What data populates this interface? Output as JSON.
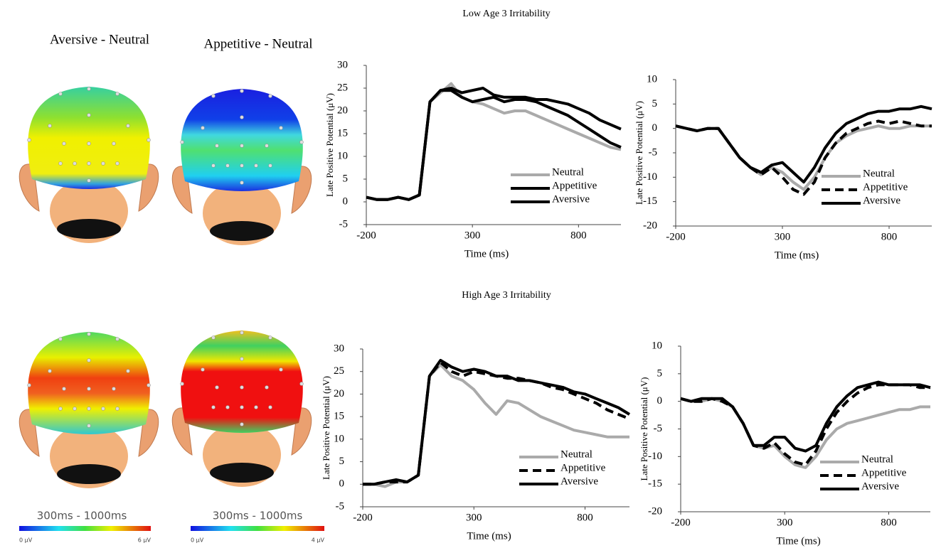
{
  "headings": {
    "low": "Low Age 3 Irritability",
    "high": "High Age 3 Irritability"
  },
  "scalp_maps": {
    "columns": [
      "Aversive - Neutral",
      "Appetitive - Neutral"
    ],
    "window_labels": [
      "300ms - 1000ms",
      "300ms - 1000ms"
    ],
    "scale_min_labels": [
      "0 μV",
      "0 μV"
    ],
    "scale_max_labels": [
      "6 μV",
      "4 μV"
    ]
  },
  "chart_data": [
    {
      "type": "line",
      "x_label": "Time (ms)",
      "y_label": "Late Positive Potential (μV)",
      "x": [
        -200,
        -150,
        -100,
        -50,
        0,
        50,
        100,
        150,
        200,
        250,
        300,
        350,
        400,
        450,
        500,
        550,
        600,
        650,
        700,
        750,
        800,
        850,
        900,
        950,
        1000
      ],
      "xlim": [
        -200,
        1000
      ],
      "xticks": [
        -200,
        300,
        800
      ],
      "ylim": [
        -5,
        30
      ],
      "yticks": [
        -5,
        0,
        5,
        10,
        15,
        20,
        25,
        30
      ],
      "series": [
        {
          "name": "Neutral",
          "color": "#aaaaaa",
          "dash": false,
          "values": [
            1,
            0.5,
            0.5,
            1,
            0.5,
            1.5,
            22,
            24,
            26,
            23,
            22,
            21.5,
            20.5,
            19.5,
            20,
            20,
            19,
            18,
            17,
            16,
            15,
            14,
            13,
            12,
            11.5
          ]
        },
        {
          "name": "Appetitive",
          "color": "#000000",
          "dash": false,
          "values": [
            1,
            0.5,
            0.5,
            1,
            0.5,
            1.5,
            22,
            24.5,
            25,
            24,
            24.5,
            25,
            23.5,
            23,
            23,
            23,
            22.5,
            22.5,
            22,
            21.5,
            20.5,
            19.5,
            18,
            17,
            16
          ]
        },
        {
          "name": "Aversive",
          "color": "#000000",
          "dash": false,
          "values": [
            1,
            0.5,
            0.5,
            1,
            0.5,
            1.5,
            22,
            24.5,
            24.5,
            23,
            22,
            22.5,
            23,
            22,
            22.5,
            22.5,
            22,
            21,
            20,
            19,
            17.5,
            16,
            14.5,
            13,
            12
          ]
        }
      ]
    },
    {
      "type": "line",
      "x_label": "Time (ms)",
      "y_label": "Late Positive Potential (μV)",
      "x": [
        -200,
        -150,
        -100,
        -50,
        0,
        50,
        100,
        150,
        200,
        250,
        300,
        350,
        400,
        450,
        500,
        550,
        600,
        650,
        700,
        750,
        800,
        850,
        900,
        950,
        1000
      ],
      "xlim": [
        -200,
        1000
      ],
      "xticks": [
        -200,
        300,
        800
      ],
      "ylim": [
        -20,
        10
      ],
      "yticks": [
        -20,
        -15,
        -10,
        -5,
        0,
        5,
        10
      ],
      "series": [
        {
          "name": "Neutral",
          "color": "#aaaaaa",
          "dash": false,
          "values": [
            0.5,
            0,
            -0.5,
            0,
            0,
            -3,
            -6,
            -8,
            -9.5,
            -8,
            -9,
            -11,
            -12.5,
            -10,
            -6,
            -3,
            -1.5,
            -0.5,
            0,
            0.5,
            0,
            0,
            0.5,
            0.5,
            0.5
          ]
        },
        {
          "name": "Appetitive",
          "color": "#000000",
          "dash": true,
          "values": [
            0.5,
            0,
            -0.5,
            0,
            0,
            -3,
            -6,
            -8,
            -9.5,
            -8,
            -10,
            -12.5,
            -13.5,
            -11,
            -6,
            -3,
            -1,
            0,
            1,
            1.5,
            1,
            1.5,
            1,
            0.5,
            0.5
          ]
        },
        {
          "name": "Aversive",
          "color": "#000000",
          "dash": false,
          "values": [
            0.5,
            0,
            -0.5,
            0,
            0,
            -3,
            -6,
            -8,
            -9,
            -7.5,
            -7,
            -9,
            -11,
            -8,
            -4,
            -1,
            1,
            2,
            3,
            3.5,
            3.5,
            4,
            4,
            4.5,
            4
          ]
        }
      ]
    },
    {
      "type": "line",
      "x_label": "Time (ms)",
      "y_label": "Late Positive Potential (μV)",
      "x": [
        -200,
        -150,
        -100,
        -50,
        0,
        50,
        100,
        150,
        200,
        250,
        300,
        350,
        400,
        450,
        500,
        550,
        600,
        650,
        700,
        750,
        800,
        850,
        900,
        950,
        1000
      ],
      "xlim": [
        -200,
        1000
      ],
      "xticks": [
        -200,
        300,
        800
      ],
      "ylim": [
        -5,
        30
      ],
      "yticks": [
        -5,
        0,
        5,
        10,
        15,
        20,
        25,
        30
      ],
      "series": [
        {
          "name": "Neutral",
          "color": "#aaaaaa",
          "dash": false,
          "values": [
            0,
            0,
            -0.5,
            0.5,
            0.5,
            2,
            24,
            26.5,
            24,
            23,
            21,
            18,
            15.5,
            18.5,
            18,
            16.5,
            15,
            14,
            13,
            12,
            11.5,
            11,
            10.5,
            10.5,
            10.5
          ]
        },
        {
          "name": "Appetitive",
          "color": "#000000",
          "dash": true,
          "values": [
            0,
            0,
            0.5,
            0.5,
            0.5,
            2,
            24,
            27,
            25,
            24,
            25,
            24.5,
            24,
            23.5,
            23.5,
            23,
            22.5,
            21.5,
            21,
            20,
            19,
            18,
            16.5,
            15.5,
            14.5
          ]
        },
        {
          "name": "Aversive",
          "color": "#000000",
          "dash": false,
          "values": [
            0,
            0,
            0.5,
            1,
            0.5,
            2,
            24,
            27.5,
            26,
            25,
            25.5,
            25,
            24,
            24,
            23,
            23,
            22.5,
            22,
            21.5,
            20.5,
            20,
            19,
            18,
            17,
            15.5
          ]
        }
      ]
    },
    {
      "type": "line",
      "x_label": "Time (ms)",
      "y_label": "Late Positive Potential (μV)",
      "x": [
        -200,
        -150,
        -100,
        -50,
        0,
        50,
        100,
        150,
        200,
        250,
        300,
        350,
        400,
        450,
        500,
        550,
        600,
        650,
        700,
        750,
        800,
        850,
        900,
        950,
        1000
      ],
      "xlim": [
        -200,
        1000
      ],
      "xticks": [
        -200,
        300,
        800
      ],
      "ylim": [
        -20,
        10
      ],
      "yticks": [
        -20,
        -15,
        -10,
        -5,
        0,
        5,
        10
      ],
      "series": [
        {
          "name": "Neutral",
          "color": "#aaaaaa",
          "dash": false,
          "values": [
            0.5,
            0,
            0,
            0.5,
            0,
            -1,
            -4,
            -8,
            -8.5,
            -8,
            -10,
            -11.5,
            -12,
            -10,
            -7,
            -5,
            -4,
            -3.5,
            -3,
            -2.5,
            -2,
            -1.5,
            -1.5,
            -1,
            -1
          ]
        },
        {
          "name": "Appetitive",
          "color": "#000000",
          "dash": true,
          "values": [
            0.5,
            0,
            0,
            0.5,
            0,
            -1,
            -4,
            -8,
            -8.5,
            -7.5,
            -9.5,
            -11,
            -11.5,
            -9,
            -5,
            -2,
            0,
            1.5,
            2.5,
            3,
            3,
            3,
            3,
            2.5,
            2.5
          ]
        },
        {
          "name": "Aversive",
          "color": "#000000",
          "dash": false,
          "values": [
            0.5,
            0,
            0.5,
            0.5,
            0.5,
            -1,
            -4,
            -8,
            -8,
            -6.5,
            -6.5,
            -8.5,
            -9,
            -8,
            -4,
            -1,
            1,
            2.5,
            3,
            3.5,
            3,
            3,
            3,
            3,
            2.5
          ]
        }
      ]
    }
  ]
}
